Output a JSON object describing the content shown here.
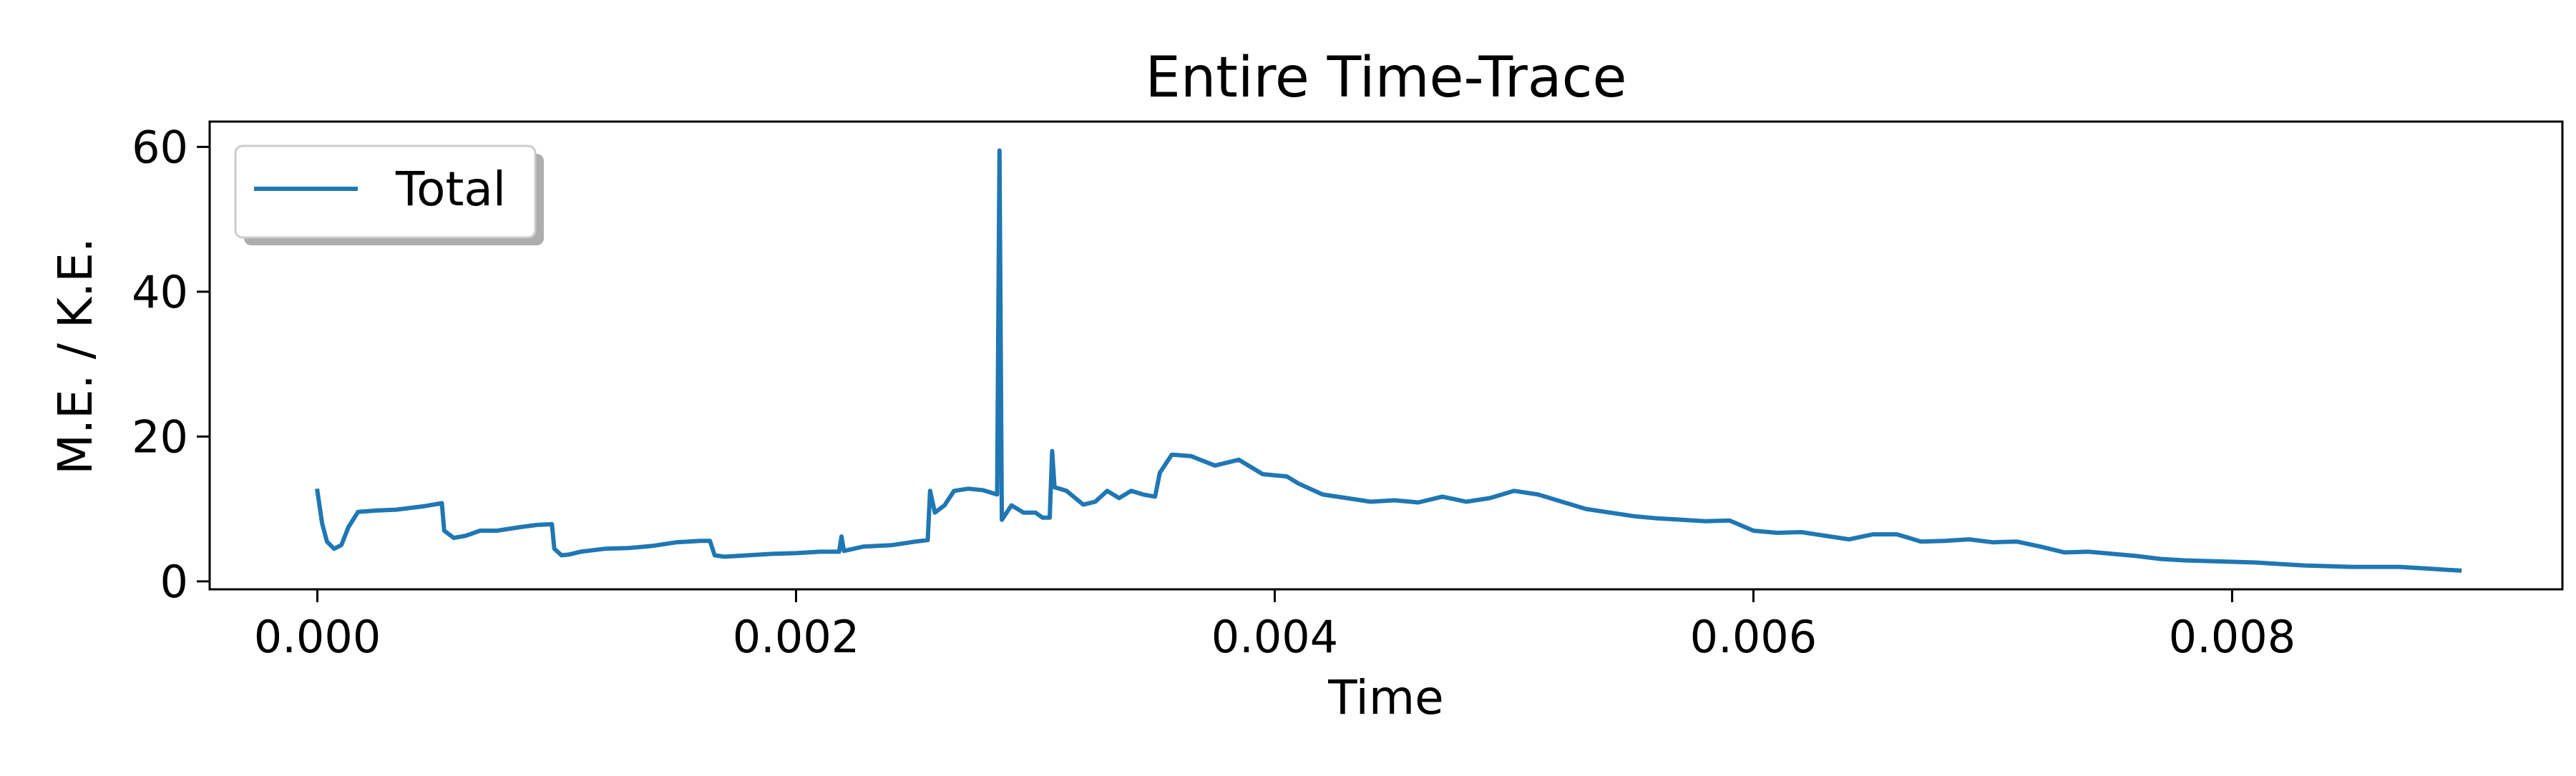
{
  "chart_data": {
    "type": "line",
    "title": "Entire Time-Trace",
    "xlabel": "Time",
    "ylabel": "M.E. / K.E.",
    "xlim": [
      -0.00045,
      0.00938
    ],
    "ylim": [
      -1.1,
      63.5
    ],
    "xticks": [
      0.0,
      0.002,
      0.004,
      0.006,
      0.008
    ],
    "xtick_labels": [
      "0.000",
      "0.002",
      "0.004",
      "0.006",
      "0.008"
    ],
    "yticks": [
      0,
      20,
      40,
      60
    ],
    "ytick_labels": [
      "0",
      "20",
      "40",
      "60"
    ],
    "grid": false,
    "legend_position": "top-left",
    "colors": {
      "series": "#1f77b4"
    },
    "series": [
      {
        "name": "Total",
        "points": [
          [
            0.0,
            12.5
          ],
          [
            2e-05,
            8.0
          ],
          [
            4e-05,
            5.5
          ],
          [
            7e-05,
            4.5
          ],
          [
            0.0001,
            5.0
          ],
          [
            0.00013,
            7.5
          ],
          [
            0.00017,
            9.6
          ],
          [
            0.00025,
            9.8
          ],
          [
            0.00033,
            9.9
          ],
          [
            0.00045,
            10.4
          ],
          [
            0.00052,
            10.8
          ],
          [
            0.00053,
            7.0
          ],
          [
            0.00057,
            6.0
          ],
          [
            0.00062,
            6.3
          ],
          [
            0.00068,
            7.0
          ],
          [
            0.00075,
            7.0
          ],
          [
            0.00085,
            7.5
          ],
          [
            0.00092,
            7.8
          ],
          [
            0.00098,
            7.9
          ],
          [
            0.00099,
            4.5
          ],
          [
            0.00102,
            3.6
          ],
          [
            0.00105,
            3.7
          ],
          [
            0.0011,
            4.1
          ],
          [
            0.0012,
            4.5
          ],
          [
            0.0013,
            4.6
          ],
          [
            0.0014,
            4.9
          ],
          [
            0.0015,
            5.4
          ],
          [
            0.0016,
            5.6
          ],
          [
            0.00164,
            5.6
          ],
          [
            0.00166,
            3.6
          ],
          [
            0.0017,
            3.4
          ],
          [
            0.00175,
            3.5
          ],
          [
            0.0019,
            3.8
          ],
          [
            0.002,
            3.9
          ],
          [
            0.0021,
            4.1
          ],
          [
            0.00218,
            4.1
          ],
          [
            0.00219,
            6.2
          ],
          [
            0.0022,
            4.2
          ],
          [
            0.00228,
            4.8
          ],
          [
            0.0024,
            5.0
          ],
          [
            0.0025,
            5.5
          ],
          [
            0.00255,
            5.7
          ],
          [
            0.00256,
            12.5
          ],
          [
            0.00258,
            9.5
          ],
          [
            0.00262,
            10.5
          ],
          [
            0.00266,
            12.5
          ],
          [
            0.00272,
            12.8
          ],
          [
            0.00278,
            12.6
          ],
          [
            0.00284,
            12.0
          ],
          [
            0.00285,
            59.5
          ],
          [
            0.00286,
            8.5
          ],
          [
            0.0029,
            10.5
          ],
          [
            0.00295,
            9.5
          ],
          [
            0.003,
            9.5
          ],
          [
            0.00303,
            8.8
          ],
          [
            0.00306,
            8.8
          ],
          [
            0.00307,
            18.0
          ],
          [
            0.00308,
            13.0
          ],
          [
            0.00313,
            12.5
          ],
          [
            0.0032,
            10.6
          ],
          [
            0.00325,
            11.0
          ],
          [
            0.0033,
            12.5
          ],
          [
            0.00335,
            11.5
          ],
          [
            0.0034,
            12.5
          ],
          [
            0.00345,
            12.0
          ],
          [
            0.0035,
            11.7
          ],
          [
            0.00352,
            15.0
          ],
          [
            0.00357,
            17.5
          ],
          [
            0.00365,
            17.3
          ],
          [
            0.00375,
            16.0
          ],
          [
            0.00385,
            16.8
          ],
          [
            0.00395,
            14.8
          ],
          [
            0.00405,
            14.5
          ],
          [
            0.0041,
            13.5
          ],
          [
            0.0042,
            12.0
          ],
          [
            0.0043,
            11.5
          ],
          [
            0.0044,
            11.0
          ],
          [
            0.0045,
            11.2
          ],
          [
            0.0046,
            10.9
          ],
          [
            0.0047,
            11.7
          ],
          [
            0.0048,
            11.0
          ],
          [
            0.0049,
            11.5
          ],
          [
            0.005,
            12.5
          ],
          [
            0.0051,
            12.0
          ],
          [
            0.0052,
            11.0
          ],
          [
            0.0053,
            10.0
          ],
          [
            0.0054,
            9.5
          ],
          [
            0.0055,
            9.0
          ],
          [
            0.0056,
            8.7
          ],
          [
            0.0057,
            8.5
          ],
          [
            0.0058,
            8.3
          ],
          [
            0.0059,
            8.4
          ],
          [
            0.006,
            7.0
          ],
          [
            0.0061,
            6.7
          ],
          [
            0.0062,
            6.8
          ],
          [
            0.0063,
            6.3
          ],
          [
            0.0064,
            5.8
          ],
          [
            0.0065,
            6.5
          ],
          [
            0.0066,
            6.5
          ],
          [
            0.0067,
            5.5
          ],
          [
            0.0068,
            5.6
          ],
          [
            0.0069,
            5.8
          ],
          [
            0.007,
            5.4
          ],
          [
            0.0071,
            5.5
          ],
          [
            0.0072,
            4.8
          ],
          [
            0.0073,
            4.0
          ],
          [
            0.0074,
            4.1
          ],
          [
            0.0075,
            3.8
          ],
          [
            0.0076,
            3.5
          ],
          [
            0.0077,
            3.1
          ],
          [
            0.0078,
            2.9
          ],
          [
            0.0079,
            2.8
          ],
          [
            0.008,
            2.7
          ],
          [
            0.0081,
            2.6
          ],
          [
            0.0082,
            2.4
          ],
          [
            0.0083,
            2.2
          ],
          [
            0.0084,
            2.1
          ],
          [
            0.0085,
            2.0
          ],
          [
            0.0086,
            2.0
          ],
          [
            0.0087,
            2.0
          ],
          [
            0.0088,
            1.8
          ],
          [
            0.0089,
            1.6
          ],
          [
            0.00895,
            1.5
          ]
        ]
      }
    ]
  }
}
